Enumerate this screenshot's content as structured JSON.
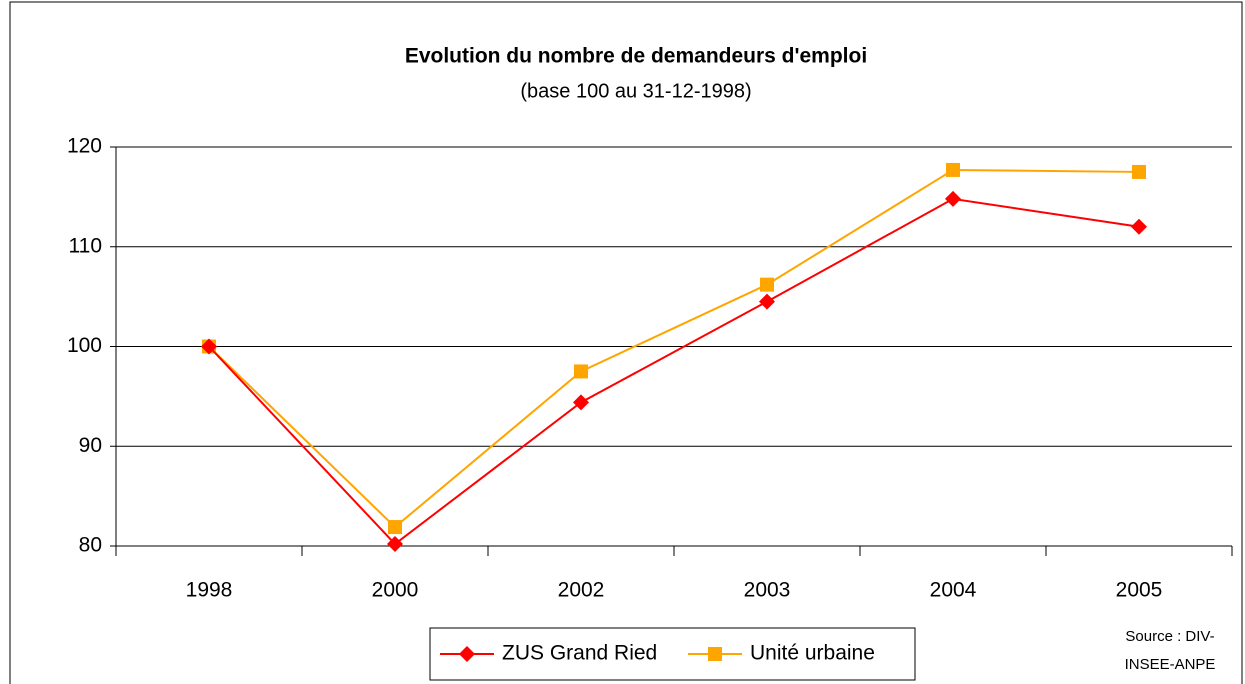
{
  "chart_data": {
    "type": "line",
    "title": "Evolution du nombre de demandeurs d'emploi",
    "subtitle": "(base 100 au 31-12-1998)",
    "categories": [
      "1998",
      "2000",
      "2002",
      "2003",
      "2004",
      "2005"
    ],
    "series": [
      {
        "name": "ZUS Grand Ried",
        "color": "#ff0000",
        "marker": "diamond",
        "values": [
          100,
          80.2,
          94.4,
          104.5,
          114.8,
          112.0
        ]
      },
      {
        "name": "Unité urbaine",
        "color": "#ffa500",
        "marker": "square",
        "values": [
          100,
          81.9,
          97.5,
          106.2,
          117.7,
          117.5
        ]
      }
    ],
    "ylim": [
      80,
      120
    ],
    "yticks": [
      80,
      90,
      100,
      110,
      120
    ],
    "grid": true,
    "legend": "bottom",
    "source": [
      "Source : DIV-",
      "INSEE-ANPE"
    ]
  }
}
